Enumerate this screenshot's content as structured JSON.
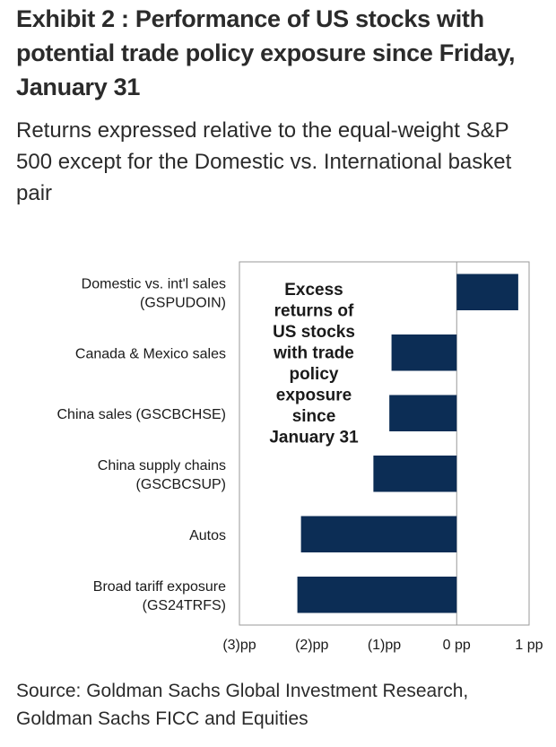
{
  "title": "Exhibit 2 : Performance of US stocks with potential trade policy exposure since Friday, January 31",
  "subtitle": "Returns expressed relative to the equal-weight S&P 500 except for the Domestic vs. International basket pair",
  "source": "Source: Goldman Sachs Global Investment Research, Goldman Sachs FICC and Equities",
  "chart_data": {
    "type": "bar",
    "orientation": "horizontal",
    "categories": [
      [
        "Domestic vs. int'l sales",
        "(GSPUDOIN)"
      ],
      [
        "Canada & Mexico sales"
      ],
      [
        "China sales (GSCBCHSE)"
      ],
      [
        "China supply chains",
        "(GSCBCSUP)"
      ],
      [
        "Autos"
      ],
      [
        "Broad tariff exposure",
        "(GS24TRFS)"
      ]
    ],
    "values": [
      0.85,
      -0.9,
      -0.93,
      -1.15,
      -2.15,
      -2.2
    ],
    "xlim": [
      -3,
      1
    ],
    "xticks": [
      -3,
      -2,
      -1,
      0,
      1
    ],
    "xtick_labels": [
      "(3)pp",
      "(2)pp",
      "(1)pp",
      "0 pp",
      "1 pp"
    ],
    "annotation": [
      "Excess",
      "returns of",
      "US stocks",
      "with trade",
      "policy",
      "exposure",
      "since",
      "January 31"
    ],
    "bar_color": "#0c2d55",
    "grid": false
  }
}
